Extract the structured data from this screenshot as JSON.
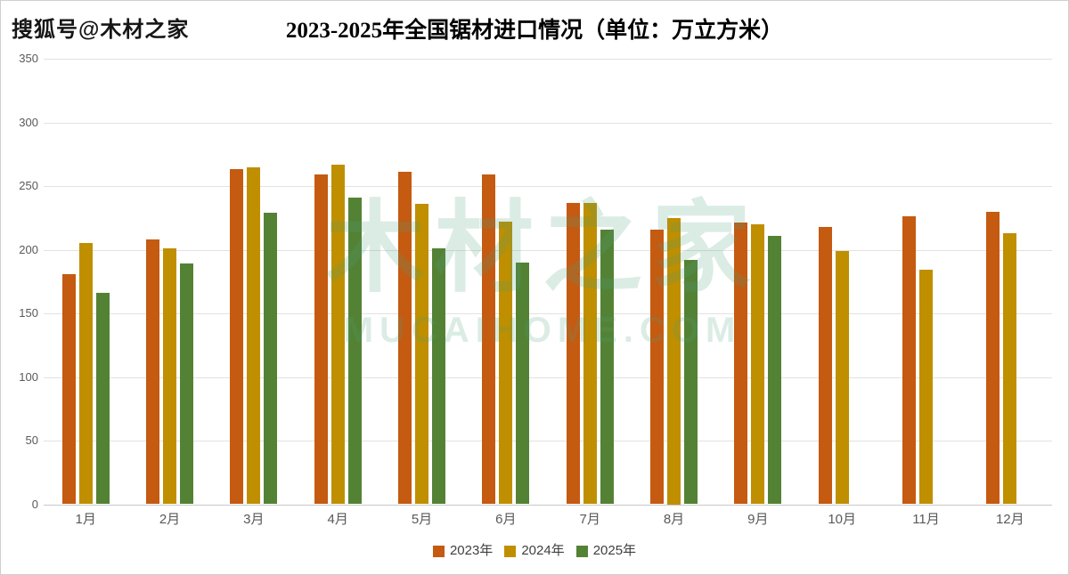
{
  "page": {
    "watermark_top_left": "搜狐号@木材之家",
    "center_watermark_line1": "木材之家",
    "center_watermark_line2": "MUCAIHOME.COM",
    "watermark_color": "#4d9e7f",
    "background_color": "#ffffff",
    "border_color": "#cfcfcf"
  },
  "chart_data": {
    "type": "bar",
    "title": "2023-2025年全国锯材进口情况（单位：万立方米）",
    "xlabel": "",
    "ylabel": "",
    "categories": [
      "1月",
      "2月",
      "3月",
      "4月",
      "5月",
      "6月",
      "7月",
      "8月",
      "9月",
      "10月",
      "11月",
      "12月"
    ],
    "series": [
      {
        "name": "2023年",
        "color": "#C55A11",
        "values": [
          181,
          208,
          263,
          259,
          261,
          259,
          237,
          216,
          221,
          218,
          226,
          230
        ]
      },
      {
        "name": "2024年",
        "color": "#BF8F00",
        "values": [
          205,
          201,
          265,
          267,
          236,
          222,
          237,
          225,
          220,
          199,
          184,
          213
        ]
      },
      {
        "name": "2025年",
        "color": "#548235",
        "values": [
          166,
          189,
          229,
          241,
          201,
          190,
          216,
          192,
          211,
          null,
          null,
          null
        ]
      }
    ],
    "ylim": [
      0,
      350
    ],
    "yticks": [
      0,
      50,
      100,
      150,
      200,
      250,
      300,
      350
    ],
    "grid": true,
    "legend_position": "bottom",
    "tick_color": "#595959",
    "gridline_color": "#e2e2e2"
  }
}
